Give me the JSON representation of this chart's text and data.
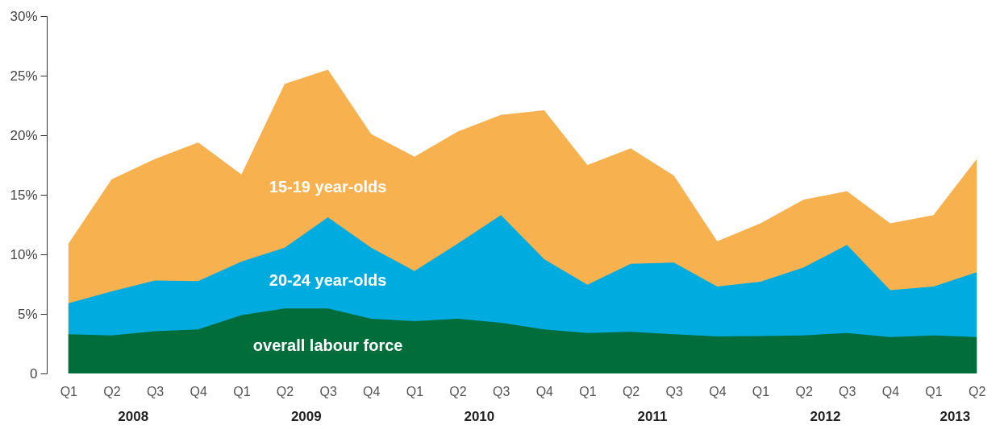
{
  "chart_data": {
    "type": "area",
    "categories": [
      "Q1",
      "Q2",
      "Q3",
      "Q4",
      "Q1",
      "Q2",
      "Q3",
      "Q4",
      "Q1",
      "Q2",
      "Q3",
      "Q4",
      "Q1",
      "Q2",
      "Q3",
      "Q4",
      "Q1",
      "Q2",
      "Q3",
      "Q4",
      "Q1",
      "Q2"
    ],
    "annotations": [
      "2008",
      "2009",
      "2010",
      "2011",
      "2012",
      "2013"
    ],
    "series": [
      {
        "name": "15-19 year-olds",
        "color": "#f8b14f",
        "values": [
          10.9,
          16.3,
          18.0,
          19.4,
          16.7,
          24.3,
          25.5,
          20.1,
          18.2,
          20.3,
          21.7,
          22.1,
          17.5,
          18.9,
          16.6,
          11.1,
          12.6,
          14.6,
          15.3,
          12.6,
          13.3,
          18.0
        ]
      },
      {
        "name": "20-24 year-olds",
        "color": "#00acdf",
        "values": [
          5.9,
          6.9,
          7.8,
          7.75,
          9.4,
          10.55,
          13.1,
          10.55,
          8.6,
          10.9,
          13.3,
          9.6,
          7.45,
          9.2,
          9.3,
          7.3,
          7.7,
          8.9,
          10.8,
          7.0,
          7.3,
          8.5
        ]
      },
      {
        "name": "overall labour force",
        "color": "#006d3a",
        "values": [
          3.3,
          3.2,
          3.55,
          3.7,
          4.9,
          5.45,
          5.45,
          4.6,
          4.4,
          4.6,
          4.25,
          3.7,
          3.4,
          3.5,
          3.3,
          3.1,
          3.15,
          3.2,
          3.4,
          3.05,
          3.2,
          3.05
        ]
      }
    ],
    "ylim": [
      0,
      30
    ],
    "yticks": [
      0,
      {
        "value": 5,
        "label": "5%"
      },
      {
        "value": 10,
        "label": "10%"
      },
      {
        "value": 15,
        "label": "15%"
      },
      {
        "value": 20,
        "label": "20%"
      },
      {
        "value": 25,
        "label": "25%"
      },
      {
        "value": 30,
        "label": "30%"
      }
    ],
    "grid": false,
    "legend": false
  }
}
